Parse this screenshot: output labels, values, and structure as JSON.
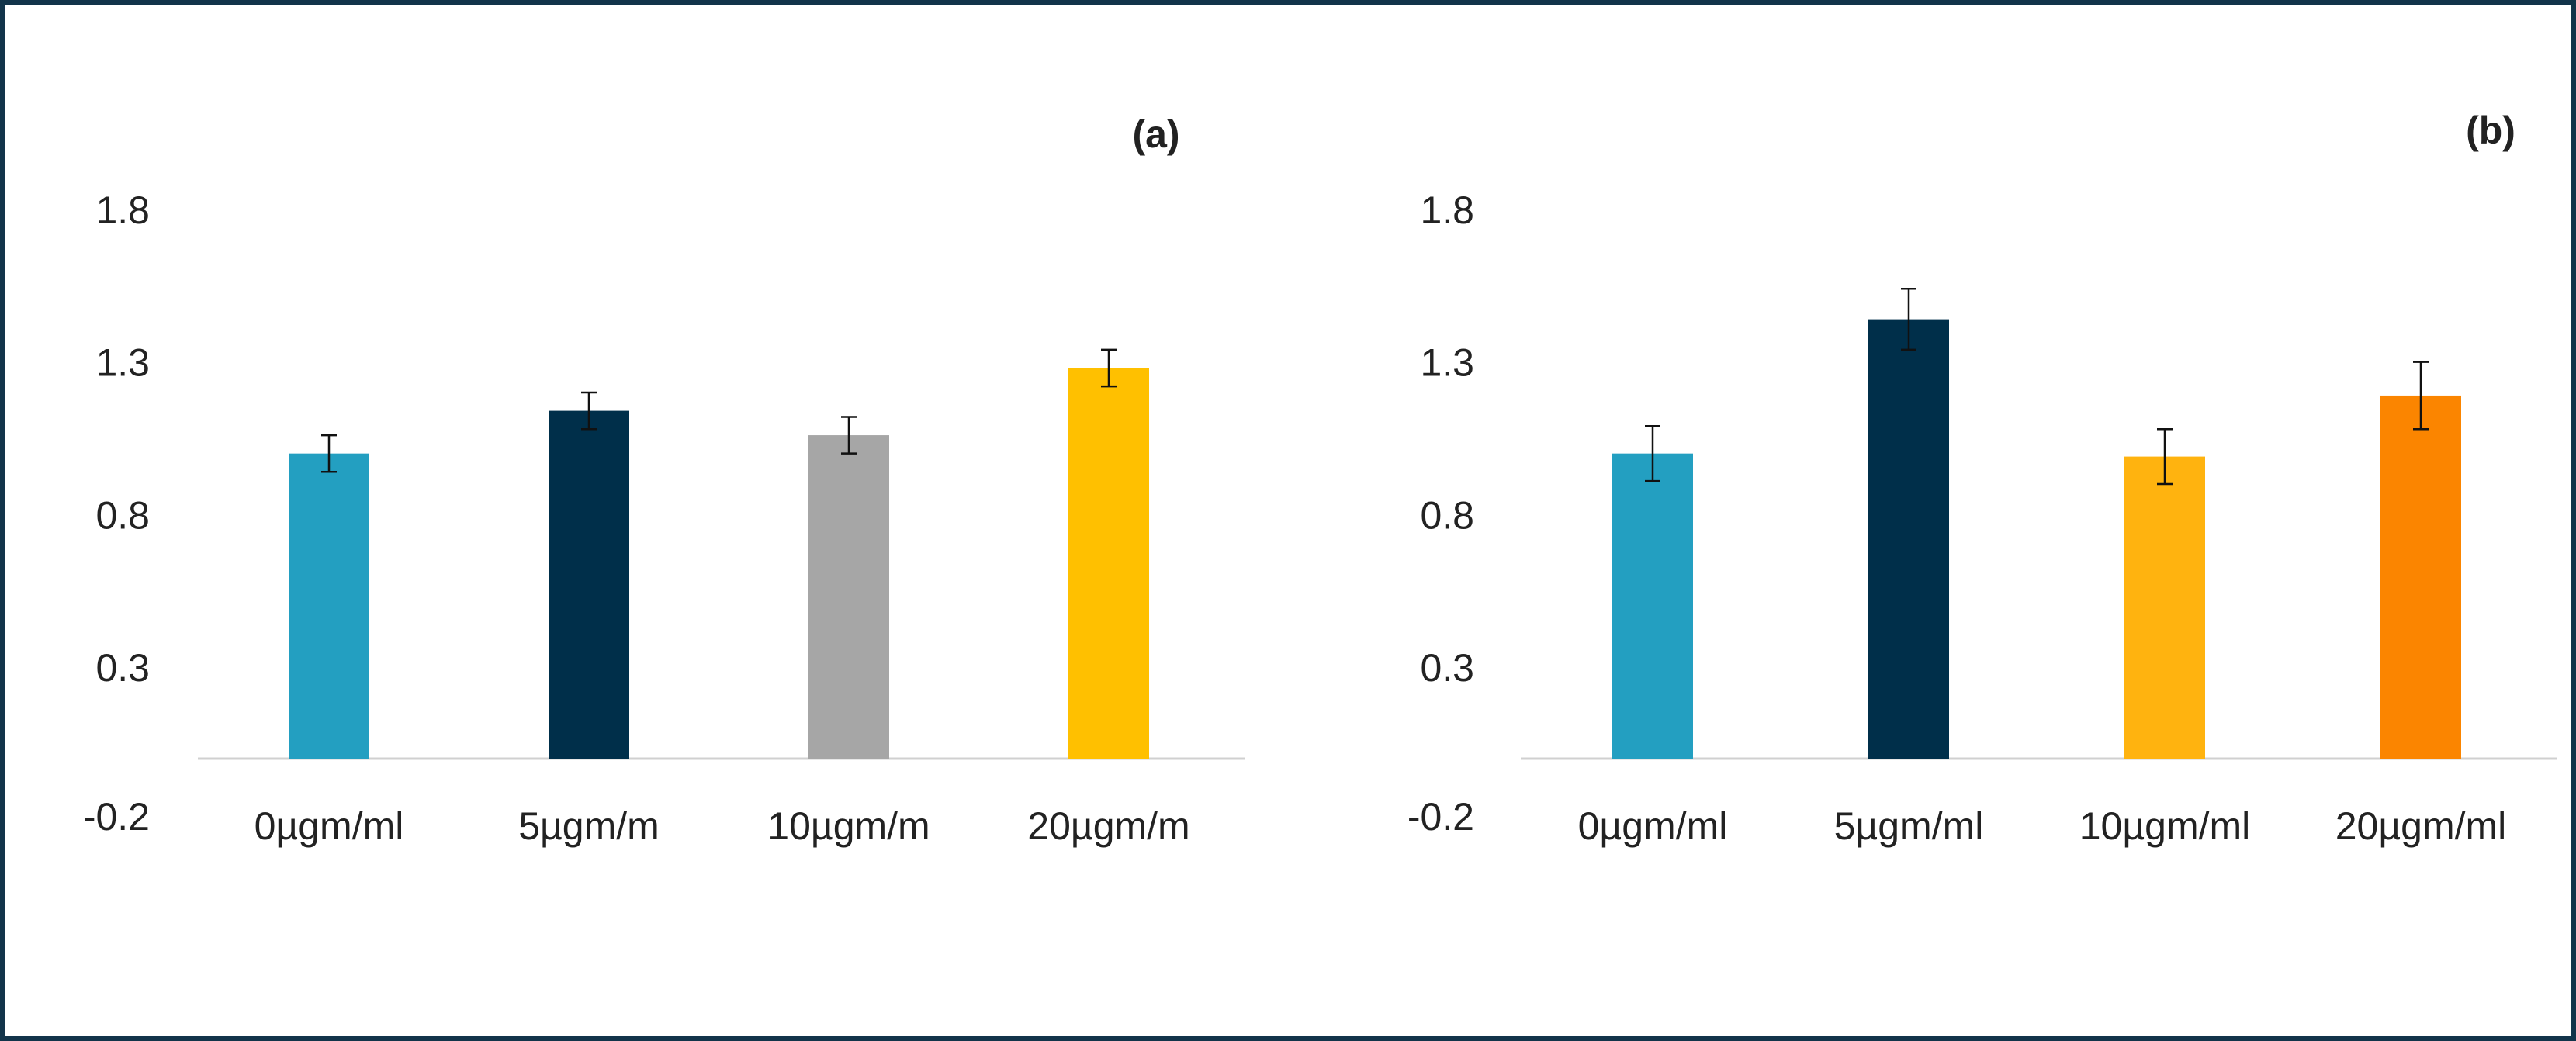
{
  "chart_data": [
    {
      "type": "bar",
      "title": "(a)",
      "xlabel": "",
      "ylabel": "",
      "ylim": [
        -0.2,
        1.8
      ],
      "yticks": [
        "1.8",
        "1.3",
        "0.8",
        "0.3",
        "-0.2"
      ],
      "ytick_values": [
        1.8,
        1.3,
        0.8,
        0.3,
        -0.2
      ],
      "grid": false,
      "categories": [
        "0µgm/ml",
        "5µgm/m",
        "10µgm/m",
        "20µgm/m"
      ],
      "values": [
        1.0,
        1.14,
        1.06,
        1.28
      ],
      "errors": [
        0.06,
        0.06,
        0.06,
        0.06
      ],
      "colors": [
        "#239fc1",
        "#002f4a",
        "#a6a6a6",
        "#ffc000"
      ]
    },
    {
      "type": "bar",
      "title": "(b)",
      "xlabel": "",
      "ylabel": "",
      "ylim": [
        -0.2,
        1.8
      ],
      "yticks": [
        "1.8",
        "1.3",
        "0.8",
        "0.3",
        "-0.2"
      ],
      "ytick_values": [
        1.8,
        1.3,
        0.8,
        0.3,
        -0.2
      ],
      "grid": false,
      "categories": [
        "0µgm/ml",
        "5µgm/ml",
        "10µgm/ml",
        "20µgm/ml"
      ],
      "values": [
        1.0,
        1.44,
        0.99,
        1.19
      ],
      "errors": [
        0.09,
        0.1,
        0.09,
        0.11
      ],
      "colors": [
        "#239fc1",
        "#002f4a",
        "#ffb30f",
        "#fb8500"
      ]
    }
  ]
}
